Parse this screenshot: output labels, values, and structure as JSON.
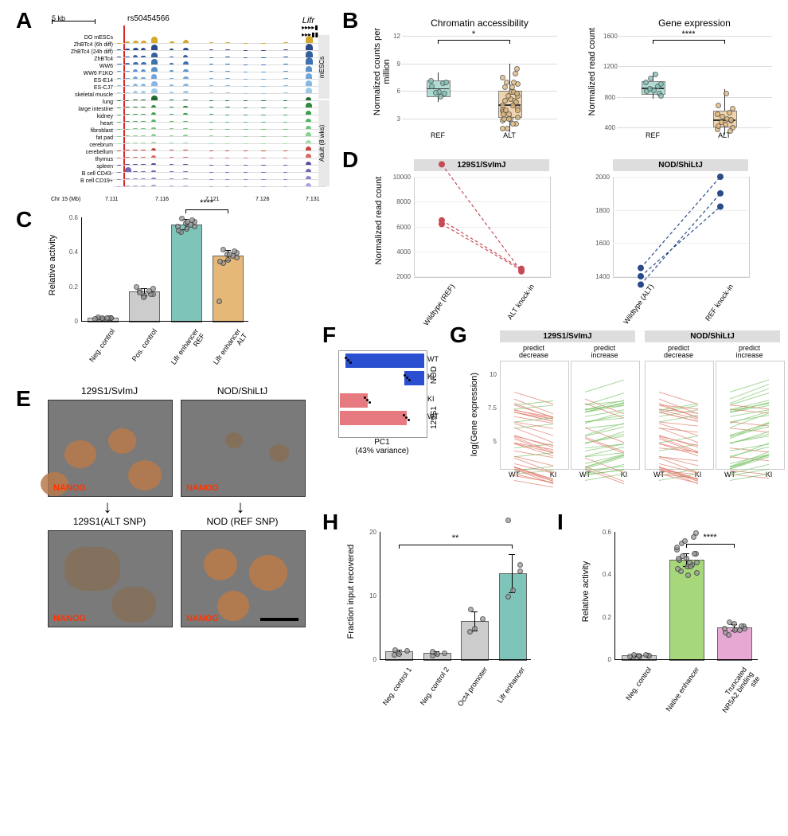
{
  "labels": {
    "A": "A",
    "B": "B",
    "C": "C",
    "D": "D",
    "E": "E",
    "F": "F",
    "G": "G",
    "H": "H",
    "I": "I"
  },
  "panelA": {
    "scale": "5 kb",
    "snp": "rs50454566",
    "gene": "Lifr",
    "xaxis_label": "Chr 15 (Mb)",
    "xticks": [
      "7.111",
      "7.116",
      "7.121",
      "7.126",
      "7.131"
    ],
    "group1_label": "mESCs",
    "group2_label": "Adult (8 wks)",
    "tracks": [
      {
        "name": "DO mESCs",
        "color": "#d4a82a",
        "peaks": [
          0.05,
          0.2,
          0.4,
          0.35,
          0.9,
          0.25,
          0.5,
          0.1,
          0.1,
          0.05,
          0.05,
          0.1,
          1.0
        ]
      },
      {
        "name": "ZhBTc4 (6h diff)",
        "color": "#2a4a8a",
        "peaks": [
          0.1,
          0.2,
          0.35,
          0.3,
          0.8,
          0.2,
          0.4,
          0.1,
          0.1,
          0.05,
          0.05,
          0.1,
          0.95
        ]
      },
      {
        "name": "ZhBTc4 (24h diff)",
        "color": "#34609e",
        "peaks": [
          0.1,
          0.15,
          0.3,
          0.25,
          0.7,
          0.15,
          0.3,
          0.05,
          0.1,
          0.05,
          0.05,
          0.1,
          0.9
        ]
      },
      {
        "name": "ZhBTc4",
        "color": "#3d71b0",
        "peaks": [
          0.15,
          0.2,
          0.4,
          0.35,
          0.85,
          0.2,
          0.45,
          0.1,
          0.1,
          0.05,
          0.05,
          0.15,
          1.0
        ]
      },
      {
        "name": "WW6",
        "color": "#5a93cc",
        "peaks": [
          0.1,
          0.15,
          0.3,
          0.3,
          0.7,
          0.2,
          0.35,
          0.1,
          0.1,
          0.05,
          0.05,
          0.1,
          0.85
        ]
      },
      {
        "name": "WW6 F1KO",
        "color": "#6fa6d9",
        "peaks": [
          0.1,
          0.15,
          0.3,
          0.25,
          0.65,
          0.15,
          0.35,
          0.1,
          0.1,
          0.05,
          0.05,
          0.1,
          0.8
        ]
      },
      {
        "name": "ES-E14",
        "color": "#85b8e2",
        "peaks": [
          0.1,
          0.15,
          0.3,
          0.3,
          0.7,
          0.2,
          0.35,
          0.1,
          0.1,
          0.05,
          0.05,
          0.1,
          0.85
        ]
      },
      {
        "name": "ES-CJ7",
        "color": "#9ecaea",
        "peaks": [
          0.1,
          0.15,
          0.3,
          0.3,
          0.7,
          0.2,
          0.35,
          0.1,
          0.1,
          0.05,
          0.05,
          0.1,
          0.85
        ]
      },
      {
        "name": "skeletal muscle",
        "color": "#1f6b2f",
        "peaks": [
          0.05,
          0.05,
          0.1,
          0.1,
          0.7,
          0.1,
          0.15,
          0.05,
          0.05,
          0.05,
          0.05,
          0.05,
          0.5
        ]
      },
      {
        "name": "lung",
        "color": "#2f8a3e",
        "peaks": [
          0.05,
          0.1,
          0.15,
          0.1,
          0.35,
          0.1,
          0.2,
          0.1,
          0.1,
          0.05,
          0.05,
          0.05,
          0.65
        ]
      },
      {
        "name": "large intestine",
        "color": "#3aa049",
        "peaks": [
          0.05,
          0.1,
          0.15,
          0.1,
          0.3,
          0.1,
          0.2,
          0.1,
          0.05,
          0.05,
          0.05,
          0.05,
          0.55
        ]
      },
      {
        "name": "kidney",
        "color": "#52b45d",
        "peaks": [
          0.05,
          0.1,
          0.1,
          0.1,
          0.3,
          0.1,
          0.15,
          0.05,
          0.05,
          0.05,
          0.05,
          0.05,
          0.5
        ]
      },
      {
        "name": "heart",
        "color": "#6cc476",
        "peaks": [
          0.05,
          0.05,
          0.1,
          0.1,
          0.25,
          0.1,
          0.15,
          0.05,
          0.05,
          0.05,
          0.05,
          0.05,
          0.5
        ]
      },
      {
        "name": "fibroblast",
        "color": "#86d28e",
        "peaks": [
          0.05,
          0.1,
          0.1,
          0.1,
          0.3,
          0.1,
          0.2,
          0.1,
          0.05,
          0.05,
          0.05,
          0.05,
          0.55
        ]
      },
      {
        "name": "fat pad",
        "color": "#a0dfa6",
        "peaks": [
          0.05,
          0.1,
          0.1,
          0.1,
          0.25,
          0.1,
          0.15,
          0.05,
          0.05,
          0.05,
          0.05,
          0.05,
          0.5
        ]
      },
      {
        "name": "cerebrum",
        "color": "#c9453a",
        "peaks": [
          0.05,
          0.1,
          0.1,
          0.1,
          0.3,
          0.1,
          0.15,
          0.05,
          0.05,
          0.05,
          0.05,
          0.05,
          0.55
        ]
      },
      {
        "name": "cerebellum",
        "color": "#d86a5f",
        "peaks": [
          0.05,
          0.1,
          0.1,
          0.1,
          0.3,
          0.1,
          0.15,
          0.05,
          0.05,
          0.05,
          0.05,
          0.05,
          0.55
        ]
      },
      {
        "name": "thymus",
        "color": "#5a4aa0",
        "peaks": [
          0.05,
          0.1,
          0.1,
          0.1,
          0.25,
          0.1,
          0.15,
          0.05,
          0.05,
          0.05,
          0.05,
          0.05,
          0.5
        ]
      },
      {
        "name": "spleen",
        "color": "#7565b5",
        "peaks": [
          0.05,
          0.7,
          0.1,
          0.1,
          0.25,
          0.1,
          0.15,
          0.05,
          0.05,
          0.05,
          0.05,
          0.05,
          0.5
        ]
      },
      {
        "name": "B cell CD43-",
        "color": "#9182c9",
        "peaks": [
          0.05,
          0.1,
          0.1,
          0.1,
          0.25,
          0.1,
          0.15,
          0.05,
          0.05,
          0.05,
          0.05,
          0.05,
          0.5
        ]
      },
      {
        "name": "B cell CD19+",
        "color": "#aea0dd",
        "peaks": [
          0.05,
          0.1,
          0.1,
          0.1,
          0.25,
          0.1,
          0.15,
          0.05,
          0.05,
          0.05,
          0.05,
          0.05,
          0.5
        ]
      }
    ]
  },
  "panelB": {
    "left": {
      "title": "Chromatin accessibility",
      "ylab": "Normalized counts per million",
      "yticks": [
        3,
        6,
        9,
        12
      ],
      "sig": "*",
      "categories": [
        "REF",
        "ALT"
      ],
      "colors": [
        "#7fc4b8",
        "#e6b877"
      ],
      "ref": {
        "min": 4.8,
        "q1": 5.5,
        "med": 6.3,
        "q3": 7.1,
        "max": 8.0,
        "points": [
          6.0,
          5.8,
          7.2,
          6.9,
          5.4,
          6.6,
          7.0,
          5.9
        ]
      },
      "alt": {
        "min": 1.5,
        "q1": 3.2,
        "med": 4.5,
        "q3": 6.0,
        "max": 9.0,
        "points": [
          3.0,
          2.5,
          4.0,
          5.0,
          6.5,
          3.8,
          5.5,
          2.0,
          7.0,
          4.2,
          3.5,
          6.0,
          8.0,
          2.8,
          4.8,
          5.2,
          3.0,
          6.8,
          4.0,
          5.5,
          3.2,
          7.5,
          2.5,
          6.0,
          4.5,
          8.5,
          3.0,
          5.0,
          4.0,
          6.5,
          3.5,
          5.8,
          2.0,
          7.0,
          4.5
        ]
      }
    },
    "right": {
      "title": "Gene expression",
      "ylab": "Normalized read count",
      "yticks": [
        400,
        800,
        1200,
        1600
      ],
      "sig": "****",
      "categories": [
        "REF",
        "ALT"
      ],
      "colors": [
        "#7fc4b8",
        "#e6b877"
      ],
      "ref": {
        "min": 780,
        "q1": 850,
        "med": 920,
        "q3": 1000,
        "max": 1120,
        "points": [
          900,
          850,
          1000,
          950,
          1100,
          880,
          820,
          1050,
          920,
          980
        ]
      },
      "alt": {
        "min": 300,
        "q1": 420,
        "med": 500,
        "q3": 620,
        "max": 900,
        "points": [
          450,
          500,
          380,
          600,
          520,
          700,
          400,
          550,
          480,
          650,
          420,
          850,
          360,
          580,
          510
        ]
      }
    }
  },
  "panelC": {
    "ylab": "Relative activity",
    "yticks": [
      0,
      0.2,
      0.4,
      0.6
    ],
    "categories": [
      "Neg. control",
      "Pos. control",
      "Lifr enhancer REF",
      "Lifr enhancer ALT"
    ],
    "colors": [
      "#cccccc",
      "#cccccc",
      "#7fc4b8",
      "#e6b877"
    ],
    "values": [
      0.02,
      0.17,
      0.56,
      0.38
    ],
    "errors": [
      0.005,
      0.02,
      0.03,
      0.03
    ],
    "sig": "****",
    "points": [
      [
        0.018,
        0.022,
        0.015,
        0.025,
        0.019,
        0.021,
        0.017,
        0.023,
        0.02
      ],
      [
        0.15,
        0.16,
        0.18,
        0.17,
        0.19,
        0.14,
        0.2,
        0.16,
        0.18
      ],
      [
        0.54,
        0.58,
        0.52,
        0.6,
        0.55,
        0.57,
        0.53,
        0.59,
        0.56,
        0.55,
        0.58
      ],
      [
        0.36,
        0.4,
        0.34,
        0.42,
        0.37,
        0.39,
        0.35,
        0.41,
        0.38,
        0.12,
        0.39
      ]
    ]
  },
  "panelD": {
    "left": {
      "title": "129S1/SvImJ",
      "ylab": "Normalized read count",
      "xlabels": [
        "Wildtype (REF)",
        "ALT knock-in"
      ],
      "yticks": [
        2000,
        4000,
        6000,
        8000,
        10000
      ],
      "color": "#c94a57",
      "pairs": [
        [
          11000,
          2400
        ],
        [
          6500,
          2600
        ],
        [
          6200,
          2500
        ]
      ]
    },
    "right": {
      "title": "NOD/ShiLtJ",
      "xlabels": [
        "Wildtype (ALT)",
        "REF knock-in"
      ],
      "yticks": [
        1400,
        1600,
        1800,
        2000
      ],
      "color": "#2a4a8a",
      "pairs": [
        [
          1350,
          1900
        ],
        [
          1400,
          1820
        ],
        [
          1450,
          2000
        ]
      ]
    }
  },
  "panelE": {
    "titles": [
      "129S1/SvImJ",
      "NOD/ShiLtJ",
      "129S1(ALT SNP)",
      "NOD (REF SNP)"
    ],
    "nanog": "NANOG",
    "scalebar_color": "#000000"
  },
  "panelF": {
    "xlab": "PC1\n(43% variance)",
    "groups": [
      {
        "label": "NOD",
        "color": "#2a4fd0",
        "bars": [
          {
            "lab": "WT",
            "val": 1.0
          },
          {
            "lab": "KI",
            "val": 0.25
          }
        ]
      },
      {
        "label": "129S1",
        "color": "#e67a80",
        "bars": [
          {
            "lab": "KI",
            "val": 0.35
          },
          {
            "lab": "WT",
            "val": 0.85
          }
        ]
      }
    ]
  },
  "panelG": {
    "strains": [
      "129S1/SvImJ",
      "NOD/ShiLtJ"
    ],
    "sub_titles": [
      "predict\ndecrease",
      "predict\nincrease"
    ],
    "ylab": "log(Gene expression)",
    "xlabels": [
      "WT",
      "KI"
    ],
    "yticks": [
      5.0,
      7.5,
      10.0
    ],
    "colors": {
      "dec": "#e07a6a",
      "inc": "#7cc46a"
    }
  },
  "panelH": {
    "ylab": "Fraction input recovered",
    "yticks": [
      0,
      10,
      20
    ],
    "categories": [
      "Neg. control 1",
      "Neg. control 2",
      "Oct4 promoter",
      "Lifr enhancer"
    ],
    "colors": [
      "#cccccc",
      "#cccccc",
      "#cccccc",
      "#7fc4b8"
    ],
    "values": [
      1.2,
      1.0,
      6.0,
      13.5
    ],
    "errors": [
      0.3,
      0.3,
      1.5,
      3.0
    ],
    "sig": "**",
    "points": [
      [
        1.0,
        1.4,
        0.8,
        1.6
      ],
      [
        0.9,
        1.1,
        0.7,
        1.3
      ],
      [
        5.0,
        6.5,
        4.5,
        8.0
      ],
      [
        11,
        14,
        10,
        22,
        15
      ]
    ]
  },
  "panelI": {
    "ylab": "Relative activity",
    "yticks": [
      0,
      0.2,
      0.4,
      0.6
    ],
    "categories": [
      "Neg. control",
      "Native enhancer",
      "Truncated NR5A2 binding site"
    ],
    "colors": [
      "#cccccc",
      "#a6d77a",
      "#e8a8d4"
    ],
    "values": [
      0.02,
      0.47,
      0.15
    ],
    "errors": [
      0.005,
      0.03,
      0.015
    ],
    "sig": "****",
    "points": [
      [
        0.018,
        0.022,
        0.015,
        0.025,
        0.019,
        0.021,
        0.017,
        0.023
      ],
      [
        0.44,
        0.5,
        0.42,
        0.55,
        0.46,
        0.48,
        0.43,
        0.58,
        0.45,
        0.52,
        0.4,
        0.6,
        0.47,
        0.49,
        0.41,
        0.56,
        0.48,
        0.5,
        0.44,
        0.53,
        0.46
      ],
      [
        0.14,
        0.16,
        0.12,
        0.18,
        0.15,
        0.17,
        0.13,
        0.16,
        0.14,
        0.15
      ]
    ]
  }
}
